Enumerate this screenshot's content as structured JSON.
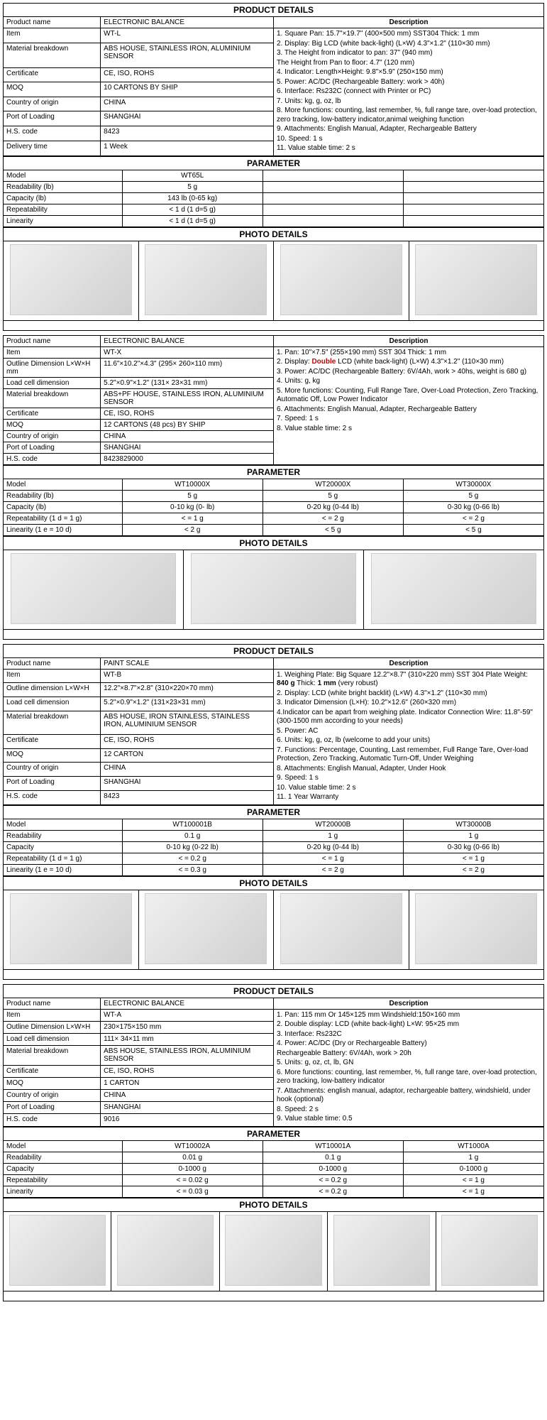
{
  "products": [
    {
      "header": "PRODUCT DETAILS",
      "details": [
        [
          "Product name",
          "ELECTRONIC BALANCE"
        ],
        [
          "Item",
          "WT-L"
        ],
        [
          "Material breakdown",
          "ABS HOUSE, STAINLESS IRON, ALUMINIUM SENSOR"
        ],
        [
          "Certificate",
          "CE, ISO, ROHS"
        ],
        [
          "MOQ",
          "10 CARTONS BY SHIP"
        ],
        [
          "Country of origin",
          "CHINA"
        ],
        [
          "Port of Loading",
          "SHANGHAI"
        ],
        [
          "H.S. code",
          "8423"
        ],
        [
          "Delivery time",
          "1 Week"
        ]
      ],
      "desc_header": "Description",
      "desc": [
        "1. Square Pan: 15.7\"×19.7\" (400×500 mm)  SST304 Thick: 1 mm",
        "2. Display: Big LCD (white back-light) (L×W) 4.3\"×1.2\" (110×30 mm)",
        "3. The Height from indicator to pan:  37\" (940 mm)",
        "The Height from Pan to floor: 4.7\" (120 mm)",
        "4. Indicator: Length×Height: 9.8\"×5.9\" (250×150 mm)",
        "5. Power: AC/DC (Rechargeable Battery: work > 40h)",
        "6. Interface: Rs232C (connect with Printer or PC)",
        "7. Units: kg, g, oz, lb",
        "8. More functions: counting, last remember, %, full range tare, over-load protection, zero tracking, low-battery indicator,animal weighing function",
        "9. Attachments: English Manual, Adapter, Rechargeable Battery",
        "10. Speed: 1 s",
        "11. Value stable time: 2 s"
      ],
      "param_header": "PARAMETER",
      "param_cols": [
        "",
        "WT65L",
        "",
        ""
      ],
      "param_rows": [
        [
          "Model",
          "WT65L",
          "",
          ""
        ],
        [
          "Readability (lb)",
          "5 g",
          "",
          ""
        ],
        [
          "Capacity (lb)",
          "143 lb (0-65 kg)",
          "",
          ""
        ],
        [
          "Repeatability",
          "< 1 d (1 d=5 g)",
          "",
          ""
        ],
        [
          "Linearity",
          "< 1 d (1 d=5 g)",
          "",
          ""
        ]
      ],
      "photo_header": "PHOTO DETAILS",
      "photo_count": 4
    },
    {
      "header": "",
      "details": [
        [
          "Product name",
          "ELECTRONIC BALANCE"
        ],
        [
          "Item",
          "WT-X"
        ],
        [
          "Outline Dimension L×W×H mm",
          "11.6\"×10.2\"×4.3\" (295× 260×110 mm)"
        ],
        [
          "Load cell dimension",
          "5.2\"×0.9\"×1.2\" (131× 23×31 mm)"
        ],
        [
          "Material breakdown",
          "ABS+PF HOUSE, STAINLESS IRON, ALUMINIUM SENSOR"
        ],
        [
          "Certificate",
          "CE, ISO, ROHS"
        ],
        [
          "MOQ",
          "12 CARTONS (48 pcs) BY SHIP"
        ],
        [
          "Country of origin",
          "CHINA"
        ],
        [
          "Port of Loading",
          "SHANGHAI"
        ],
        [
          "H.S. code",
          "8423829000"
        ]
      ],
      "desc_header": "Description",
      "desc": [
        "1. Pan: 10\"×7.5\" (255×190 mm) SST 304 Thick: 1 mm",
        "2. Display: <span class='red'>Double</span> LCD (white back-light) (L×W) 4.3\"×1.2\" (110×30 mm)",
        "3. Power: AC/DC (Rechargeable Battery: 6V/4Ah, work > 40hs, weight is 680 g)",
        "4. Units: g, kg",
        "5. More functions: Counting, Full Range Tare, Over-Load Protection, Zero Tracking, Automatic Off, Low Power Indicator",
        "6. Attachments: English Manual, Adapter, Rechargeable Battery",
        "7. Speed: 1 s",
        "8. Value stable time: 2 s"
      ],
      "param_header": "PARAMETER",
      "param_rows": [
        [
          "Model",
          "WT10000X",
          "WT20000X",
          "WT30000X"
        ],
        [
          "Readability (lb)",
          "5 g",
          "5 g",
          "5 g"
        ],
        [
          "Capacity (lb)",
          "0-10 kg (0- lb)",
          "0-20 kg (0-44 lb)",
          "0-30 kg (0-66 lb)"
        ],
        [
          "Repeatability (1 d = 1 g)",
          "< = 1 g",
          "< = 2 g",
          "< = 2 g"
        ],
        [
          "Linearity (1 e = 10 d)",
          "< 2 g",
          "< 5 g",
          "< 5 g"
        ]
      ],
      "photo_header": "PHOTO DETAILS",
      "photo_count": 3
    },
    {
      "header": "PRODUCT DETAILS",
      "details": [
        [
          "Product name",
          "PAINT SCALE"
        ],
        [
          "Item",
          "WT-B"
        ],
        [
          "Outline dimension L×W×H",
          "12.2\"×8.7\"×2.8\" (310×220×70 mm)"
        ],
        [
          "Load cell dimension",
          "5.2\"×0.9\"×1.2\" (131×23×31 mm)"
        ],
        [
          "Material breakdown",
          "ABS HOUSE, IRON STAINLESS, STAINLESS IRON, ALUMINIUM SENSOR"
        ],
        [
          "Certificate",
          "CE, ISO, ROHS"
        ],
        [
          "MOQ",
          "12 CARTON"
        ],
        [
          "Country of origin",
          "CHINA"
        ],
        [
          "Port of Loading",
          "SHANGHAI"
        ],
        [
          "H.S. code",
          "8423"
        ]
      ],
      "desc_header": "Description",
      "desc": [
        "1. Weighing Plate: Big Square 12.2\"×8.7\" (310×220 mm) SST 304 Plate Weight: <b>840 g</b>   Thick: <b>1 mm</b> (very robust)",
        "2. Display: LCD (white bright backlit) (L×W) 4.3\"×1.2\" (110×30 mm)",
        "3. Indicator Dimension (L×H):  10.2\"×12.6\" (260×320 mm)",
        "4.Indicator can be apart from weighing plate. Indicator Connection Wire: 11.8\"-59\" (300-1500 mm according to your needs)",
        "5. Power: AC",
        "6. Units:  kg, g, oz, lb (welcome to add your units)",
        "7. Functions: Percentage, Counting, Last remember, Full Range Tare, Over-load Protection, Zero Tracking, Automatic Turn-Off, Under Weighing",
        "8. Attachments: English Manual, Adapter, Under Hook",
        "9. Speed: 1 s",
        "10. Value stable time: 2 s",
        "11. 1 Year Warranty"
      ],
      "param_header": "PARAMETER",
      "param_rows": [
        [
          "Model",
          "WT100001B",
          "WT20000B",
          "WT30000B"
        ],
        [
          "Readability",
          "0.1 g",
          "1 g",
          "1 g"
        ],
        [
          "Capacity",
          "0-10 kg (0-22 lb)",
          "0-20 kg (0-44 lb)",
          "0-30 kg (0-66 lb)"
        ],
        [
          "Repeatability (1 d = 1 g)",
          "< = 0.2 g",
          "< = 1 g",
          "< = 1 g"
        ],
        [
          "Linearity (1 e = 10 d)",
          "< = 0.3 g",
          "< = 2 g",
          "< = 2 g"
        ]
      ],
      "photo_header": "PHOTO DETAILS",
      "photo_count": 4
    },
    {
      "header": "PRODUCT DETAILS",
      "details": [
        [
          "Product name",
          "ELECTRONIC BALANCE"
        ],
        [
          "Item",
          "WT-A"
        ],
        [
          "Outline Dimension L×W×H",
          "230×175×150 mm"
        ],
        [
          "Load cell dimension",
          "111× 34×11 mm"
        ],
        [
          "Material breakdown",
          "ABS HOUSE, STAINLESS IRON, ALUMINIUM SENSOR"
        ],
        [
          "Certificate",
          "CE, ISO, ROHS"
        ],
        [
          "MOQ",
          "1 CARTON"
        ],
        [
          "Country of origin",
          "CHINA"
        ],
        [
          "Port of Loading",
          "SHANGHAI"
        ],
        [
          "H.S. code",
          "9016"
        ]
      ],
      "desc_header": "Description",
      "desc": [
        "1. Pan: 115 mm Or 145×125 mm   Windshield:150×160 mm",
        "2. Double display:  LCD (white back-light)   L×W: 95×25 mm",
        "3. Interface: Rs232C",
        "4. Power: AC/DC (Dry or Rechargeable Battery)",
        "    Rechargeable Battery: 6V/4Ah, work > 20h",
        "5. Units:  g, oz, ct, lb, GN",
        "6. More functions: counting, last remember, %, full range tare, over-load protection, zero tracking, low-battery indicator",
        "7. Attachments: english manual, adaptor, rechargeable battery, windshield, under hook (optional)",
        "8. Speed: 2 s",
        "9. Value stable time: 0.5"
      ],
      "param_header": "PARAMETER",
      "param_rows": [
        [
          "Model",
          "WT10002A",
          "WT10001A",
          "WT1000A"
        ],
        [
          "Readability",
          "0.01 g",
          "0.1 g",
          "1 g"
        ],
        [
          "Capacity",
          "0-1000 g",
          "0-1000 g",
          "0-1000 g"
        ],
        [
          "Repeatability",
          "< = 0.02 g",
          "< = 0.2 g",
          "< = 1 g"
        ],
        [
          "Linearity",
          "< = 0.03 g",
          "< = 0.2 g",
          "< = 1 g"
        ]
      ],
      "photo_header": "PHOTO DETAILS",
      "photo_count": 5
    }
  ]
}
